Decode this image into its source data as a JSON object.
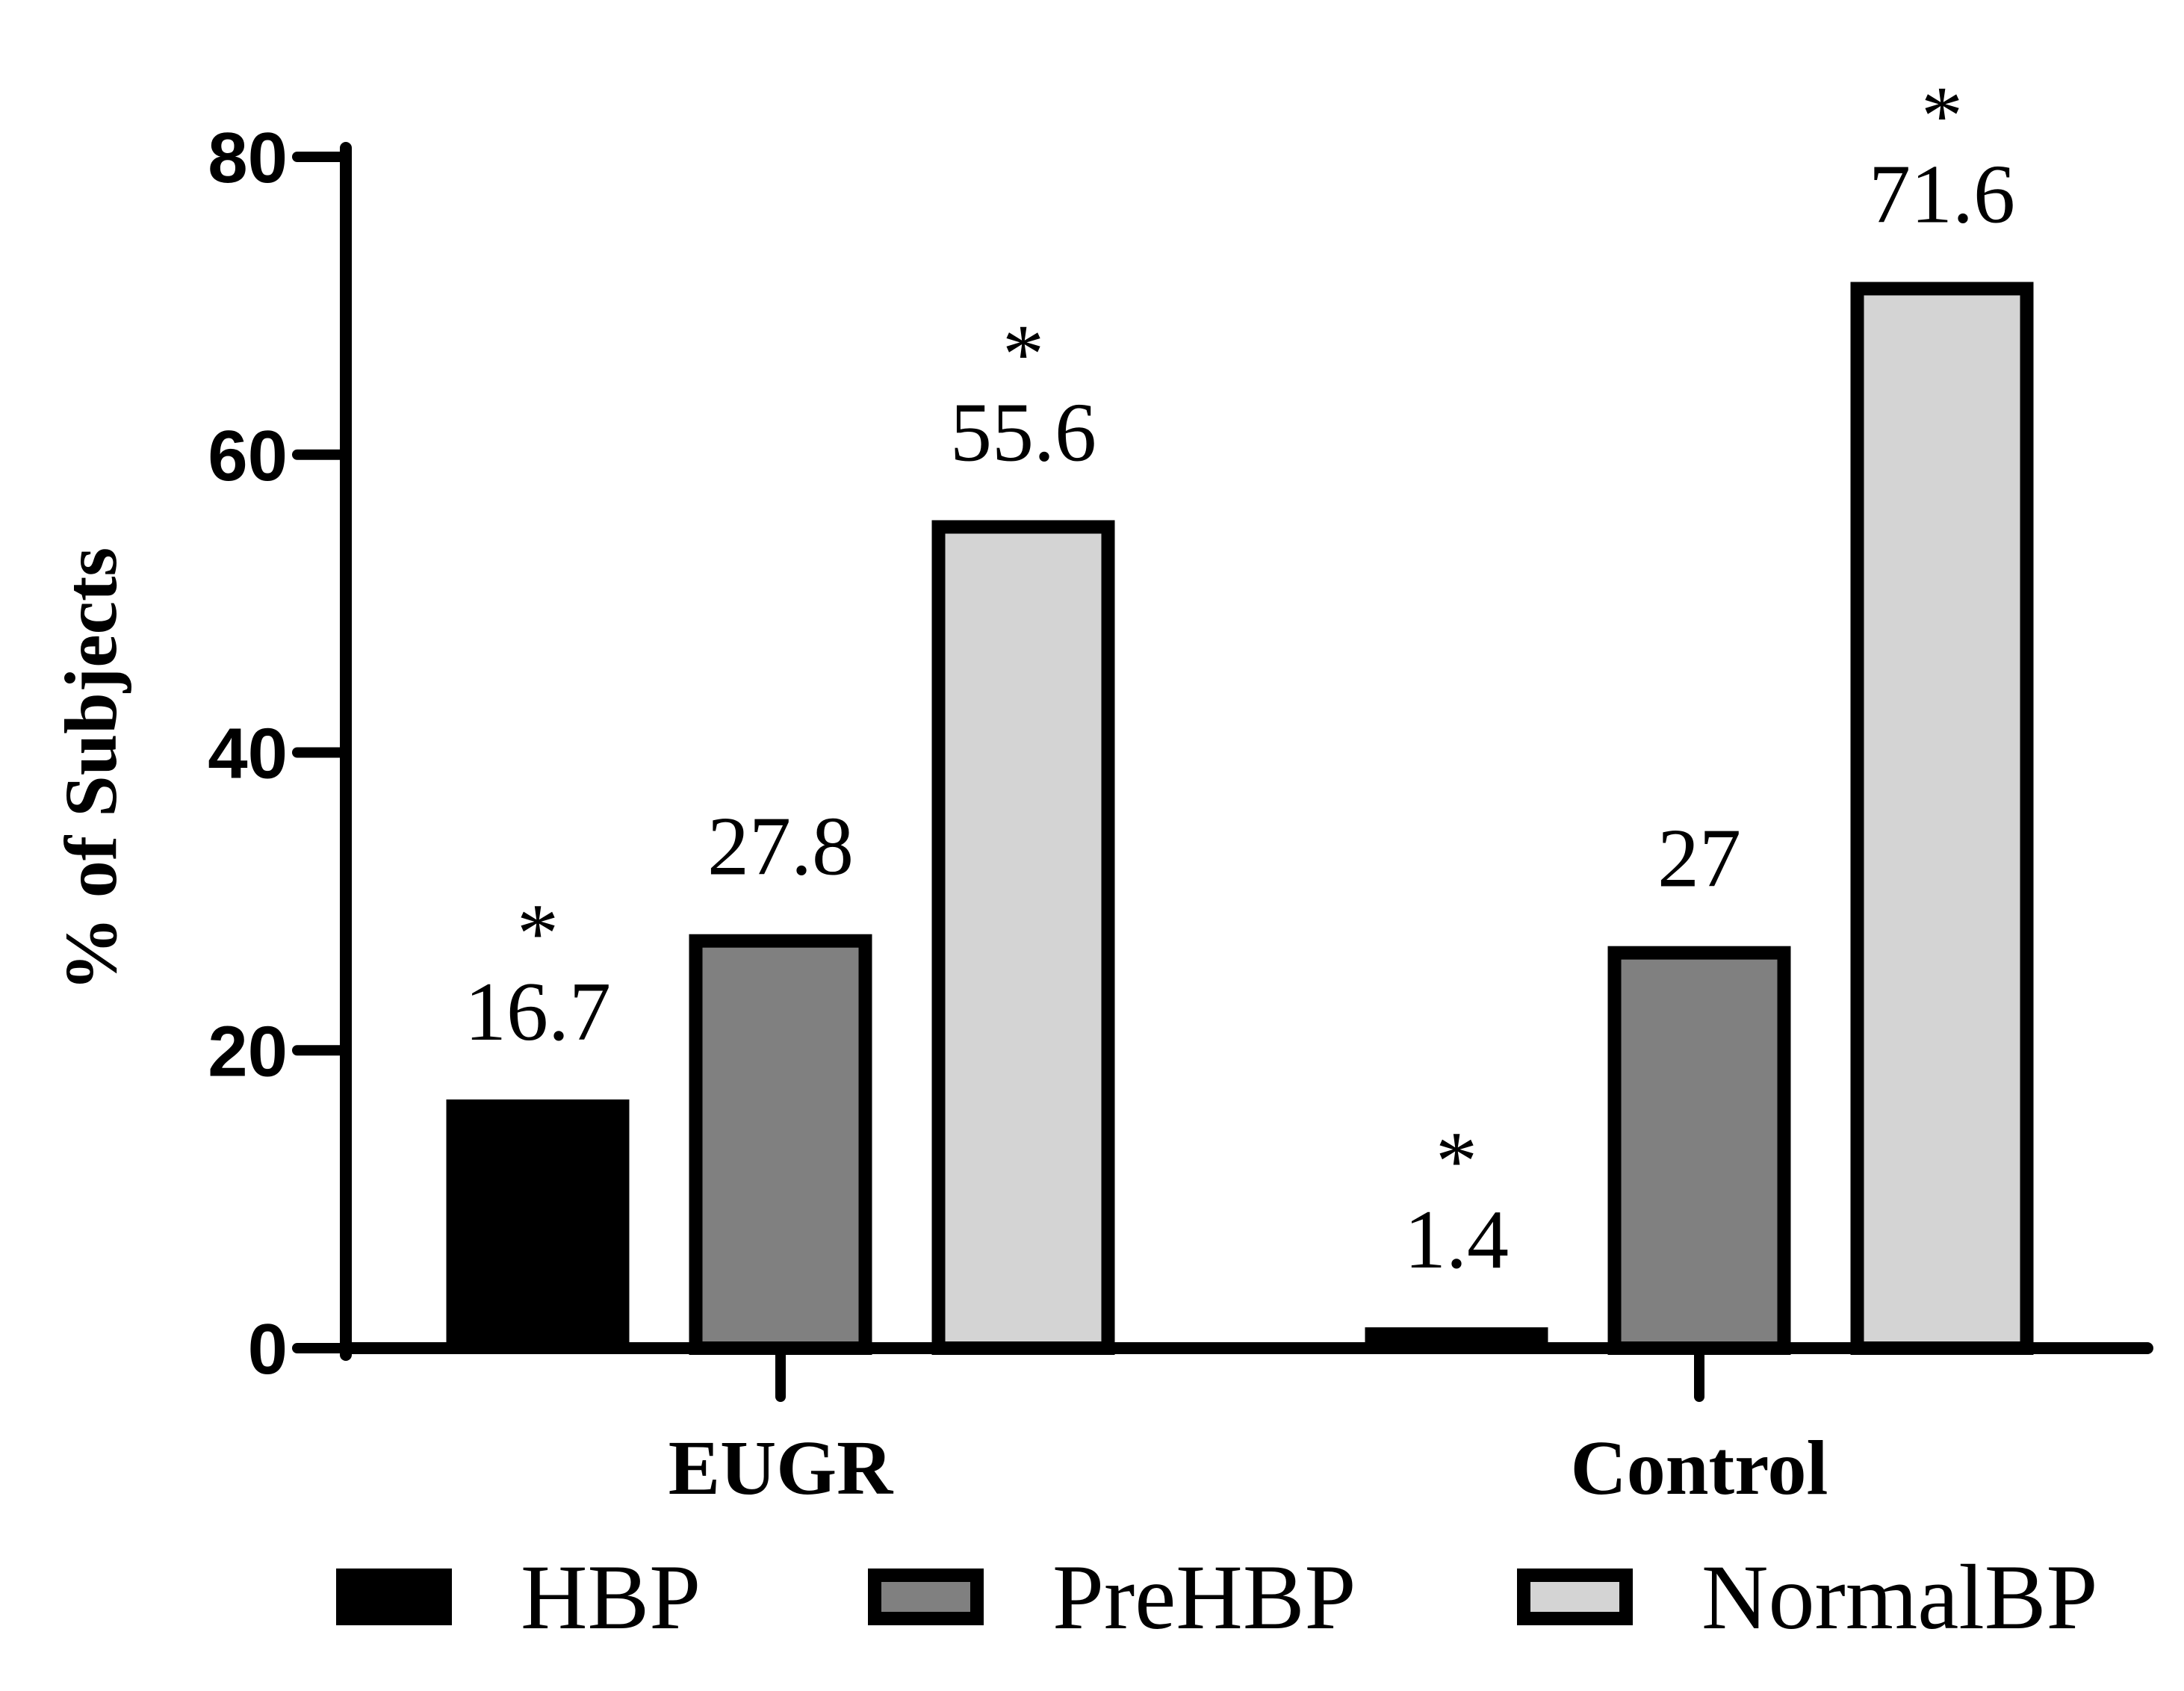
{
  "chart_data": {
    "type": "bar",
    "ylabel": "% of Subjects",
    "ylim": [
      0,
      80
    ],
    "yticks": [
      "0",
      "20",
      "40",
      "60",
      "80"
    ],
    "categories": [
      "EUGR",
      "Control"
    ],
    "series": [
      {
        "name": "HBP",
        "values": [
          16.7,
          1.4
        ],
        "value_labels": [
          "16.7",
          "1.4"
        ],
        "significant": [
          true,
          true
        ],
        "color": "#000000"
      },
      {
        "name": "PreHBP",
        "values": [
          27.8,
          27
        ],
        "value_labels": [
          "27.8",
          "27"
        ],
        "significant": [
          false,
          false
        ],
        "color": "#808080"
      },
      {
        "name": "NormalBP",
        "values": [
          55.6,
          71.6
        ],
        "value_labels": [
          "55.6",
          "71.6"
        ],
        "significant": [
          true,
          true
        ],
        "color": "#d4d4d4"
      }
    ],
    "significance_marker": "*",
    "legend_position": "bottom",
    "grid": false
  }
}
